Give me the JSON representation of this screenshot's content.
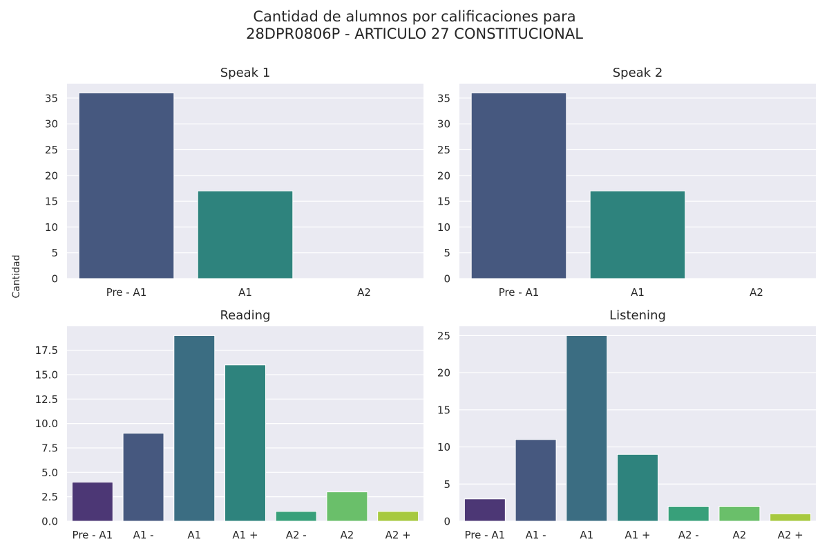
{
  "suptitle": "Cantidad de alumnos por calificaciones para\n28DPR0806P - ARTICULO 27 CONSTITUCIONAL",
  "ylabel": "Cantidad",
  "chart_data": [
    {
      "type": "bar",
      "title": "Speak 1",
      "categories": [
        "Pre - A1",
        "A1",
        "A2"
      ],
      "values": [
        36,
        17,
        0
      ],
      "colors": [
        "#46587f",
        "#2e837d",
        "#2e837d"
      ],
      "ylim": [
        0,
        37.8
      ],
      "yticks": [
        0,
        5,
        10,
        15,
        20,
        25,
        30,
        35
      ],
      "ytick_labels": [
        "0",
        "5",
        "10",
        "15",
        "20",
        "25",
        "30",
        "35"
      ],
      "grid": true
    },
    {
      "type": "bar",
      "title": "Speak 2",
      "categories": [
        "Pre - A1",
        "A1",
        "A2"
      ],
      "values": [
        36,
        17,
        0
      ],
      "colors": [
        "#46587f",
        "#2e837d",
        "#2e837d"
      ],
      "ylim": [
        0,
        37.8
      ],
      "yticks": [
        0,
        5,
        10,
        15,
        20,
        25,
        30,
        35
      ],
      "ytick_labels": [
        "0",
        "5",
        "10",
        "15",
        "20",
        "25",
        "30",
        "35"
      ],
      "grid": true
    },
    {
      "type": "bar",
      "title": "Reading",
      "categories": [
        "Pre - A1",
        "A1 -",
        "A1",
        "A1 +",
        "A2 -",
        "A2",
        "A2 +"
      ],
      "values": [
        4,
        9,
        19,
        16,
        1,
        3,
        1
      ],
      "colors": [
        "#4c3775",
        "#46587f",
        "#3b6d82",
        "#2e837d",
        "#38a07a",
        "#6abf6a",
        "#a7c93f"
      ],
      "ylim": [
        0,
        19.95
      ],
      "yticks": [
        0,
        2.5,
        5,
        7.5,
        10,
        12.5,
        15,
        17.5
      ],
      "ytick_labels": [
        "0.0",
        "2.5",
        "5.0",
        "7.5",
        "10.0",
        "12.5",
        "15.0",
        "17.5"
      ],
      "grid": true
    },
    {
      "type": "bar",
      "title": "Listening",
      "categories": [
        "Pre - A1",
        "A1 -",
        "A1",
        "A1 +",
        "A2 -",
        "A2",
        "A2 +"
      ],
      "values": [
        3,
        11,
        25,
        9,
        2,
        2,
        1
      ],
      "colors": [
        "#4c3775",
        "#46587f",
        "#3b6d82",
        "#2e837d",
        "#38a07a",
        "#6abf6a",
        "#a7c93f"
      ],
      "ylim": [
        0,
        26.25
      ],
      "yticks": [
        0,
        5,
        10,
        15,
        20,
        25
      ],
      "ytick_labels": [
        "0",
        "5",
        "10",
        "15",
        "20",
        "25"
      ],
      "grid": true
    }
  ],
  "colors": {
    "panel_background": "#eaeaf2",
    "gridline": "#ffffff",
    "text": "#262626"
  }
}
